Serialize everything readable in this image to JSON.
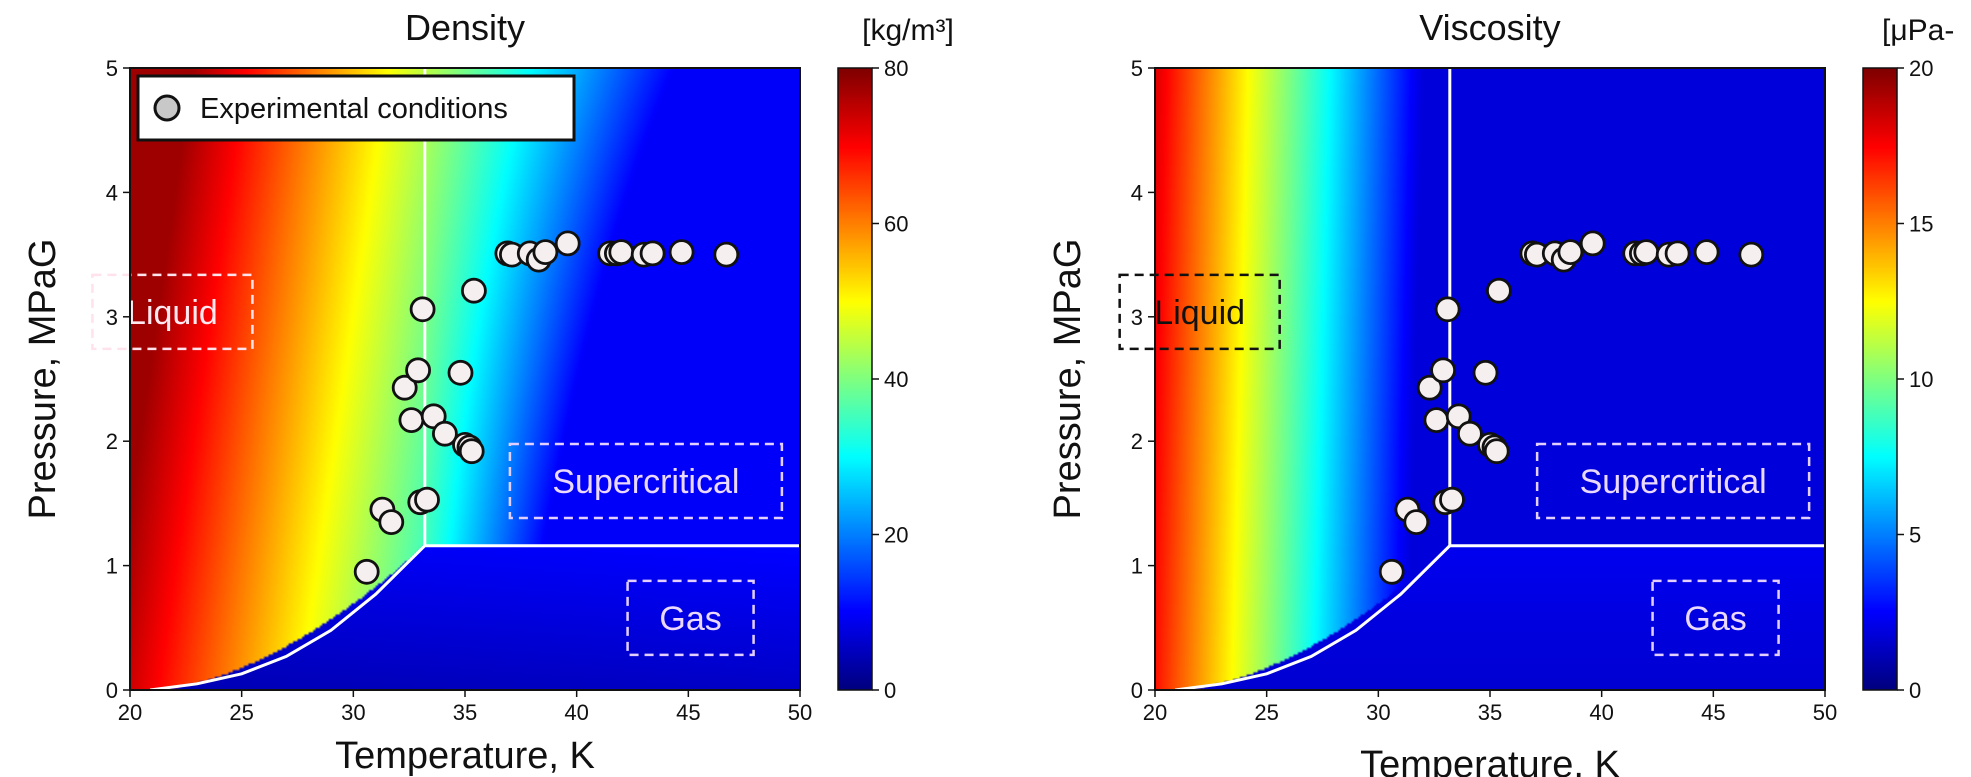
{
  "chart_data": [
    {
      "type": "heatmap",
      "title": "Density",
      "xlabel": "Temperature, K",
      "ylabel": "Pressure, MPaG",
      "xlim": [
        20,
        50
      ],
      "ylim": [
        0,
        5
      ],
      "xticks": [
        "20",
        "25",
        "30",
        "35",
        "40",
        "45",
        "50"
      ],
      "yticks": [
        "0",
        "1",
        "2",
        "3",
        "4",
        "5"
      ],
      "colorbar": {
        "label": "[kg/m³]",
        "min": 0,
        "max": 80,
        "ticks": [
          "0",
          "20",
          "40",
          "60",
          "80"
        ],
        "colormap": "jet"
      },
      "regions": [
        {
          "label": "Liquid",
          "text_color": "#ffe9f1",
          "box_color": "#ffe2ec"
        },
        {
          "label": "Supercritical",
          "text_color": "#ead8ff",
          "box_color": "#e3cfff"
        },
        {
          "label": "Gas",
          "text_color": "#ead8ff",
          "box_color": "#e3cfff"
        }
      ],
      "legend": {
        "entries": [
          "Experimental conditions"
        ],
        "position": "top-left"
      },
      "boundaries": {
        "critical_temperature": 33.2,
        "critical_pressure": 1.16,
        "saturation_curve": [
          [
            20.9,
            0.0
          ],
          [
            23,
            0.05
          ],
          [
            25,
            0.13
          ],
          [
            27,
            0.27
          ],
          [
            29,
            0.48
          ],
          [
            31,
            0.77
          ],
          [
            33.2,
            1.16
          ]
        ]
      },
      "series": [
        {
          "name": "Experimental conditions",
          "type": "scatter",
          "points": [
            [
              30.6,
              0.95
            ],
            [
              31.3,
              1.45
            ],
            [
              31.7,
              1.35
            ],
            [
              32.3,
              2.43
            ],
            [
              32.6,
              2.17
            ],
            [
              32.9,
              2.57
            ],
            [
              33.0,
              1.51
            ],
            [
              33.1,
              3.06
            ],
            [
              33.3,
              1.53
            ],
            [
              33.6,
              2.2
            ],
            [
              34.1,
              2.06
            ],
            [
              34.8,
              2.55
            ],
            [
              35.0,
              1.97
            ],
            [
              35.2,
              1.95
            ],
            [
              35.3,
              1.92
            ],
            [
              35.4,
              3.21
            ],
            [
              36.9,
              3.51
            ],
            [
              37.1,
              3.5
            ],
            [
              37.9,
              3.51
            ],
            [
              38.3,
              3.46
            ],
            [
              38.6,
              3.52
            ],
            [
              39.6,
              3.59
            ],
            [
              41.5,
              3.51
            ],
            [
              41.8,
              3.51
            ],
            [
              42.0,
              3.52
            ],
            [
              43.0,
              3.5
            ],
            [
              43.4,
              3.51
            ],
            [
              44.7,
              3.52
            ],
            [
              46.7,
              3.5
            ]
          ]
        }
      ]
    },
    {
      "type": "heatmap",
      "title": "Viscosity",
      "xlabel": "Temperature, K",
      "ylabel": "Pressure, MPaG",
      "xlim": [
        20,
        50
      ],
      "ylim": [
        0,
        5
      ],
      "xticks": [
        "20",
        "25",
        "30",
        "35",
        "40",
        "45",
        "50"
      ],
      "yticks": [
        "0",
        "1",
        "2",
        "3",
        "4",
        "5"
      ],
      "colorbar": {
        "label": "[μPa-",
        "min": 0,
        "max": 20,
        "ticks": [
          "0",
          "5",
          "10",
          "15",
          "20"
        ],
        "colormap": "jet"
      },
      "regions": [
        {
          "label": "Liquid",
          "text_color": "#111111",
          "box_color": "#111111"
        },
        {
          "label": "Supercritical",
          "text_color": "#ead8ff",
          "box_color": "#e3cfff"
        },
        {
          "label": "Gas",
          "text_color": "#ead8ff",
          "box_color": "#e3cfff"
        }
      ],
      "boundaries": {
        "critical_temperature": 33.2,
        "critical_pressure": 1.16,
        "saturation_curve": [
          [
            20.9,
            0.0
          ],
          [
            23,
            0.05
          ],
          [
            25,
            0.13
          ],
          [
            27,
            0.27
          ],
          [
            29,
            0.48
          ],
          [
            31,
            0.77
          ],
          [
            33.2,
            1.16
          ]
        ]
      },
      "series": [
        {
          "name": "Experimental conditions",
          "type": "scatter",
          "points": [
            [
              30.6,
              0.95
            ],
            [
              31.3,
              1.45
            ],
            [
              31.7,
              1.35
            ],
            [
              32.3,
              2.43
            ],
            [
              32.6,
              2.17
            ],
            [
              32.9,
              2.57
            ],
            [
              33.0,
              1.51
            ],
            [
              33.1,
              3.06
            ],
            [
              33.3,
              1.53
            ],
            [
              33.6,
              2.2
            ],
            [
              34.1,
              2.06
            ],
            [
              34.8,
              2.55
            ],
            [
              35.0,
              1.97
            ],
            [
              35.2,
              1.95
            ],
            [
              35.3,
              1.92
            ],
            [
              35.4,
              3.21
            ],
            [
              36.9,
              3.51
            ],
            [
              37.1,
              3.5
            ],
            [
              37.9,
              3.51
            ],
            [
              38.3,
              3.46
            ],
            [
              38.6,
              3.52
            ],
            [
              39.6,
              3.59
            ],
            [
              41.5,
              3.51
            ],
            [
              41.8,
              3.51
            ],
            [
              42.0,
              3.52
            ],
            [
              43.0,
              3.5
            ],
            [
              43.4,
              3.51
            ],
            [
              44.7,
              3.52
            ],
            [
              46.7,
              3.5
            ]
          ]
        }
      ]
    }
  ]
}
